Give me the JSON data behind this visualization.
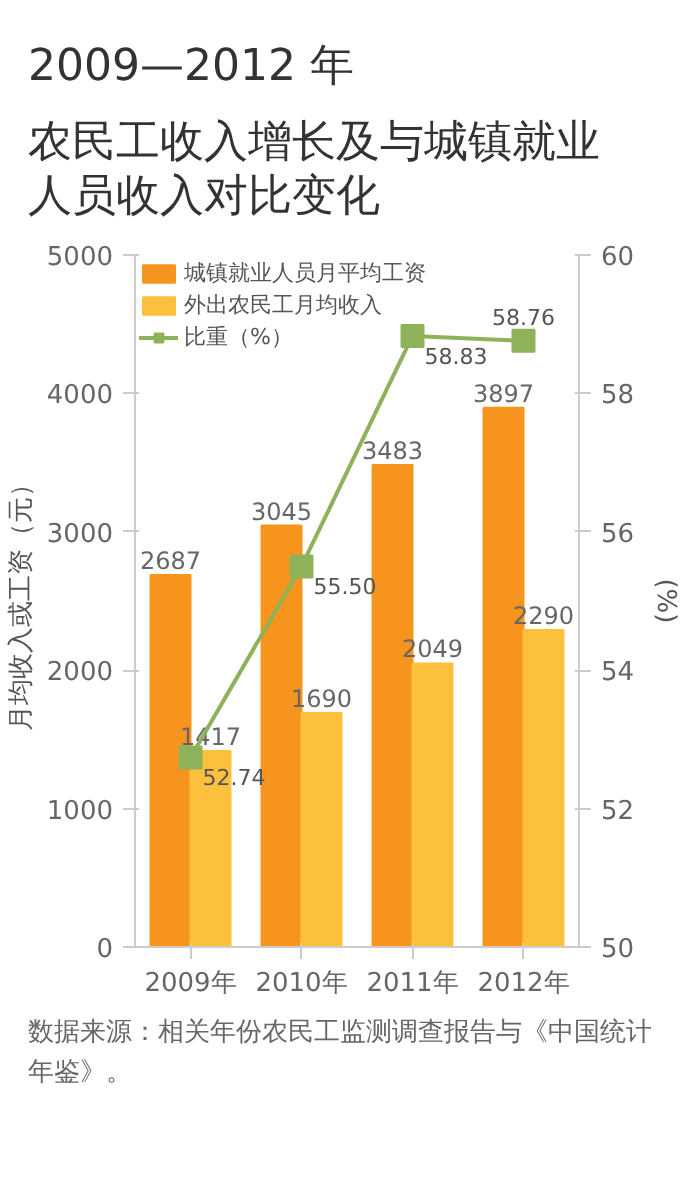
{
  "chart_data": {
    "type": "bar",
    "title": "2009—2012 年",
    "subtitle": "农民工收入增长及与城镇就业人员收入对比变化",
    "categories": [
      "2009年",
      "2010年",
      "2011年",
      "2012年"
    ],
    "series": [
      {
        "name": "城镇就业人员月平均工资",
        "color": "#f7941d",
        "values": [
          2687,
          3045,
          3483,
          3897
        ]
      },
      {
        "name": "外出农民工月均收入",
        "color": "#fcc03c",
        "values": [
          1417,
          1690,
          2049,
          2290
        ]
      },
      {
        "name": "比重（%）",
        "type": "line",
        "axis": "y2",
        "color": "#8db25a",
        "marker": "square",
        "values": [
          52.74,
          55.5,
          58.83,
          58.76
        ],
        "value_labels": [
          "52.74",
          "55.50",
          "58.83",
          "58.76"
        ]
      }
    ],
    "ylim": [
      0,
      5000
    ],
    "yticks": [
      0,
      1000,
      2000,
      3000,
      4000,
      5000
    ],
    "y2lim": [
      50,
      60
    ],
    "y2ticks": [
      50,
      52,
      54,
      56,
      58,
      60
    ],
    "ylabel": "月均收入或工资（元）",
    "y2label": "(%)",
    "data_labels": true,
    "grid": false,
    "legend": "top left",
    "annotations": [
      "数据来源：相关年份农民工监测调查报告与《中国统计年鉴》。"
    ]
  }
}
